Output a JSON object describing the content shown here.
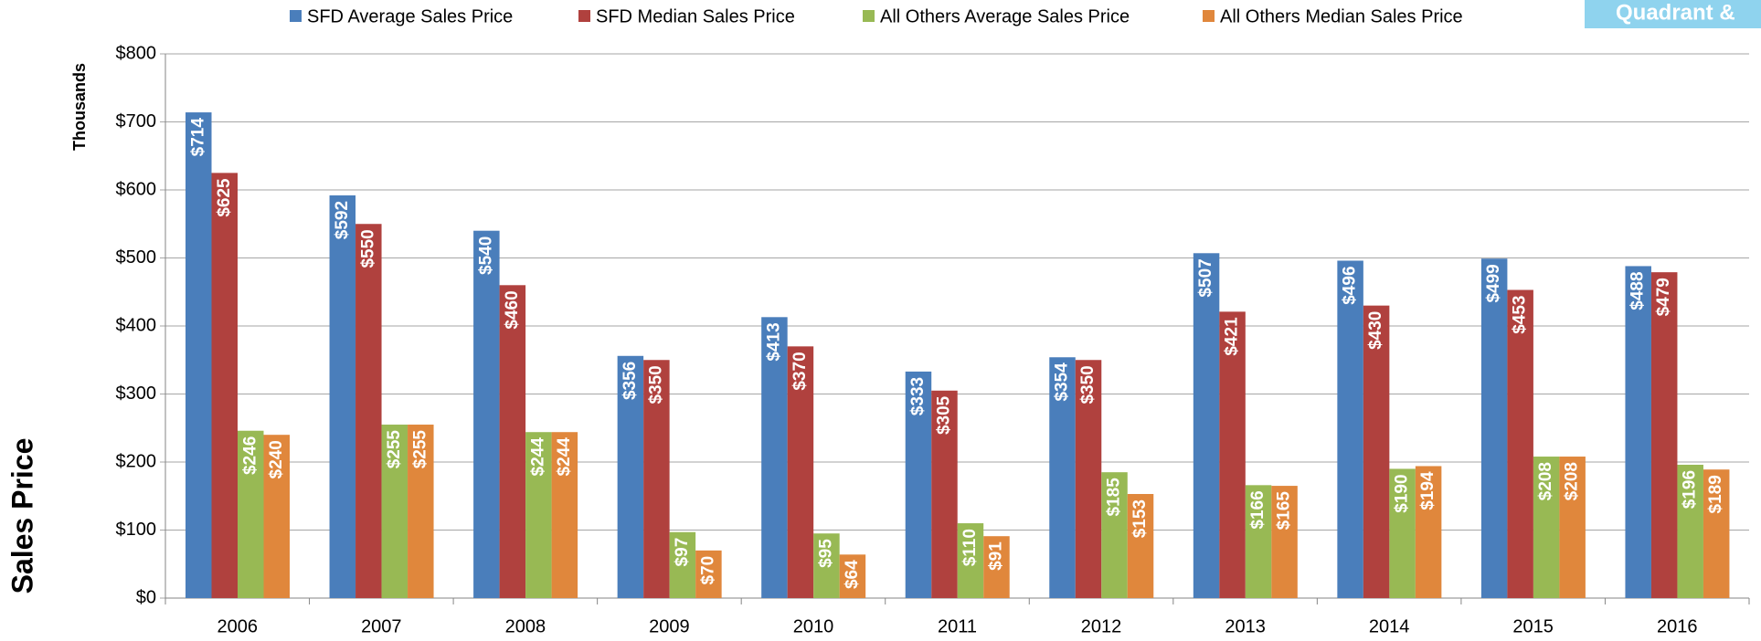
{
  "chart_data": {
    "type": "bar",
    "y_axis_label": "Sales Price",
    "y_axis_unit": "Thousands",
    "badge": "Quadrant &",
    "categories": [
      "2006",
      "2007",
      "2008",
      "2009",
      "2010",
      "2011",
      "2012",
      "2013",
      "2014",
      "2015",
      "2016"
    ],
    "series": [
      {
        "name": "SFD Average Sales Price",
        "color": "#4a7ebb",
        "values": [
          714,
          592,
          540,
          356,
          413,
          333,
          354,
          507,
          496,
          499,
          488
        ],
        "value_labels": [
          "$714",
          "$592",
          "$540",
          "$356",
          "$413",
          "$333",
          "$354",
          "$507",
          "$496",
          "$499",
          "$488"
        ]
      },
      {
        "name": "SFD Median Sales Price",
        "color": "#b0413e",
        "values": [
          625,
          550,
          460,
          350,
          370,
          305,
          350,
          421,
          430,
          453,
          479
        ],
        "value_labels": [
          "$625",
          "$550",
          "$460",
          "$350",
          "$370",
          "$305",
          "$350",
          "$421",
          "$430",
          "$453",
          "$479"
        ]
      },
      {
        "name": "All Others Average Sales Price",
        "color": "#98b954",
        "values": [
          246,
          255,
          244,
          97,
          95,
          110,
          185,
          166,
          190,
          208,
          196
        ],
        "value_labels": [
          "$246",
          "$255",
          "$244",
          "$97",
          "$95",
          "$110",
          "$185",
          "$166",
          "$190",
          "$208",
          "$196"
        ]
      },
      {
        "name": "All Others Median Sales Price",
        "color": "#e0873c",
        "values": [
          240,
          255,
          244,
          70,
          64,
          91,
          153,
          165,
          194,
          208,
          189
        ],
        "value_labels": [
          "$240",
          "$255",
          "$244",
          "$70",
          "$64",
          "$91",
          "$153",
          "$165",
          "$194",
          "$208",
          "$189"
        ]
      }
    ],
    "ylim": [
      0,
      800
    ],
    "yticks": [
      {
        "value": 0,
        "label": "$0"
      },
      {
        "value": 100,
        "label": "$100"
      },
      {
        "value": 200,
        "label": "$200"
      },
      {
        "value": 300,
        "label": "$300"
      },
      {
        "value": 400,
        "label": "$400"
      },
      {
        "value": 500,
        "label": "$500"
      },
      {
        "value": 600,
        "label": "$600"
      },
      {
        "value": 700,
        "label": "$700"
      },
      {
        "value": 800,
        "label": "$800"
      }
    ],
    "grid": true,
    "legend": "top"
  }
}
